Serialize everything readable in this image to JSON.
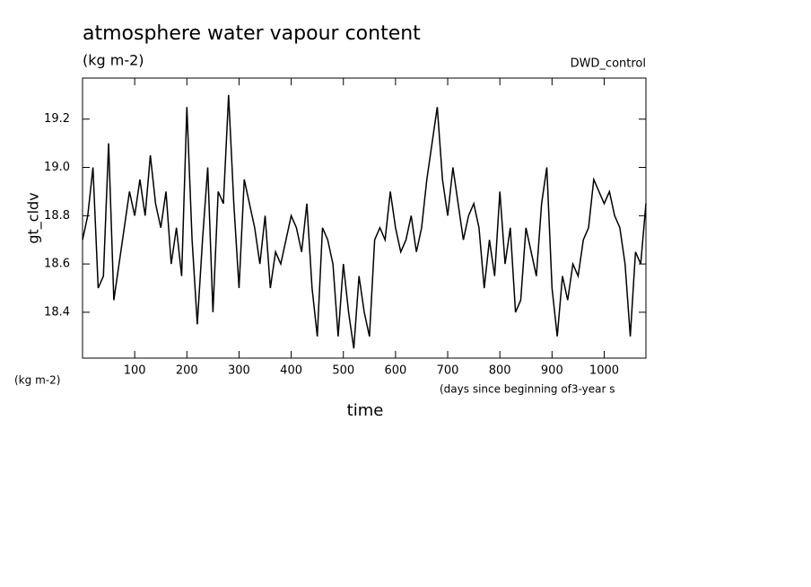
{
  "chart_data": {
    "type": "line",
    "title": "atmosphere water vapour content",
    "subtitle": "(kg m-2)",
    "run_label": "DWD_control",
    "y_label": "gt_cldv",
    "x_label": "time",
    "y_unit_note": "(kg m-2)",
    "x_unit_note": "(days since beginning of3-year s",
    "xlim": [
      0,
      1080
    ],
    "ylim": [
      18.21,
      19.37
    ],
    "xticks": [
      100,
      200,
      300,
      400,
      500,
      600,
      700,
      800,
      900,
      1000
    ],
    "yticks": [
      18.4,
      18.6,
      18.8,
      {
        "value": 19,
        "label": "19.0"
      },
      19.2
    ],
    "color": "#000000",
    "x": [
      0,
      10,
      20,
      30,
      40,
      50,
      60,
      70,
      80,
      90,
      100,
      110,
      120,
      130,
      140,
      150,
      160,
      170,
      180,
      190,
      200,
      210,
      220,
      230,
      240,
      250,
      260,
      270,
      280,
      290,
      300,
      310,
      320,
      330,
      340,
      350,
      360,
      370,
      380,
      390,
      400,
      410,
      420,
      430,
      440,
      450,
      460,
      470,
      480,
      490,
      500,
      510,
      520,
      530,
      540,
      550,
      560,
      570,
      580,
      590,
      600,
      610,
      620,
      630,
      640,
      650,
      660,
      670,
      680,
      690,
      700,
      710,
      720,
      730,
      740,
      750,
      760,
      770,
      780,
      790,
      800,
      810,
      820,
      830,
      840,
      850,
      860,
      870,
      880,
      890,
      900,
      910,
      920,
      930,
      940,
      950,
      960,
      970,
      980,
      990,
      1000,
      1010,
      1020,
      1030,
      1040,
      1050,
      1060,
      1070,
      1080
    ],
    "values": [
      18.7,
      18.8,
      19.0,
      18.5,
      18.55,
      19.1,
      18.45,
      18.6,
      18.75,
      18.9,
      18.8,
      18.95,
      18.8,
      19.05,
      18.85,
      18.75,
      18.9,
      18.6,
      18.75,
      18.55,
      19.25,
      18.7,
      18.35,
      18.7,
      19.0,
      18.4,
      18.9,
      18.85,
      19.3,
      18.85,
      18.5,
      18.95,
      18.85,
      18.75,
      18.6,
      18.8,
      18.5,
      18.65,
      18.6,
      18.7,
      18.8,
      18.75,
      18.65,
      18.85,
      18.5,
      18.3,
      18.75,
      18.7,
      18.6,
      18.3,
      18.6,
      18.4,
      18.25,
      18.55,
      18.4,
      18.3,
      18.7,
      18.75,
      18.7,
      18.9,
      18.75,
      18.65,
      18.7,
      18.8,
      18.65,
      18.75,
      18.95,
      19.1,
      19.25,
      18.95,
      18.8,
      19.0,
      18.85,
      18.7,
      18.8,
      18.85,
      18.75,
      18.5,
      18.7,
      18.55,
      18.9,
      18.6,
      18.75,
      18.4,
      18.45,
      18.75,
      18.65,
      18.55,
      18.85,
      19.0,
      18.5,
      18.3,
      18.55,
      18.45,
      18.6,
      18.55,
      18.7,
      18.75,
      18.95,
      18.9,
      18.85,
      18.9,
      18.8,
      18.75,
      18.6,
      18.3,
      18.65,
      18.6,
      18.85
    ]
  }
}
